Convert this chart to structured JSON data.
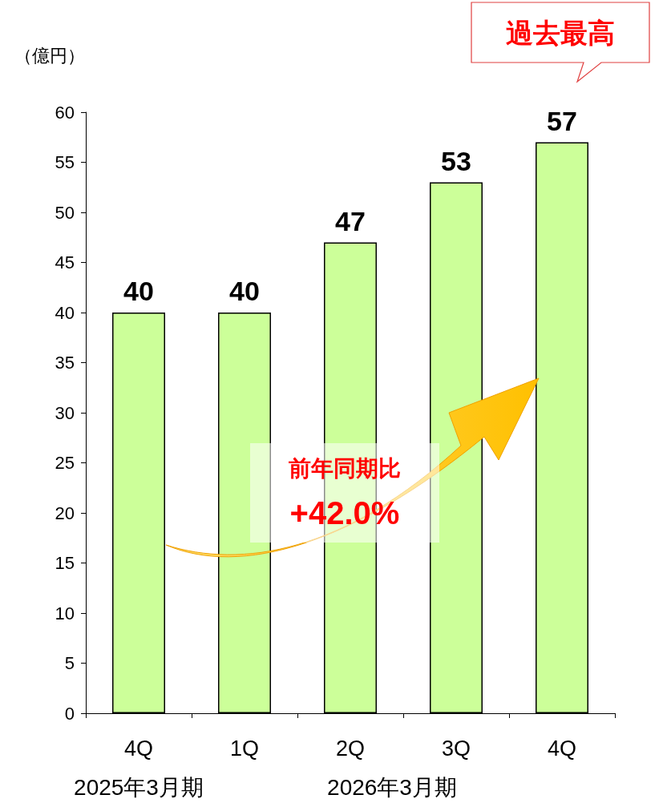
{
  "chart_data": {
    "type": "bar",
    "ylabel": "（億円）",
    "categories": [
      "4Q",
      "1Q",
      "2Q",
      "3Q",
      "4Q"
    ],
    "values": [
      40,
      40,
      47,
      53,
      57
    ],
    "color": "#ccff99",
    "ylim": [
      0,
      60
    ],
    "yticks": [
      0,
      5,
      10,
      15,
      20,
      25,
      30,
      35,
      40,
      45,
      50,
      55,
      60
    ],
    "grid": false,
    "data_labels": true,
    "annotations": [
      "2025年3月期",
      "2026年3月期",
      "前年同期比",
      "+42.0%",
      "過去最高"
    ]
  }
}
